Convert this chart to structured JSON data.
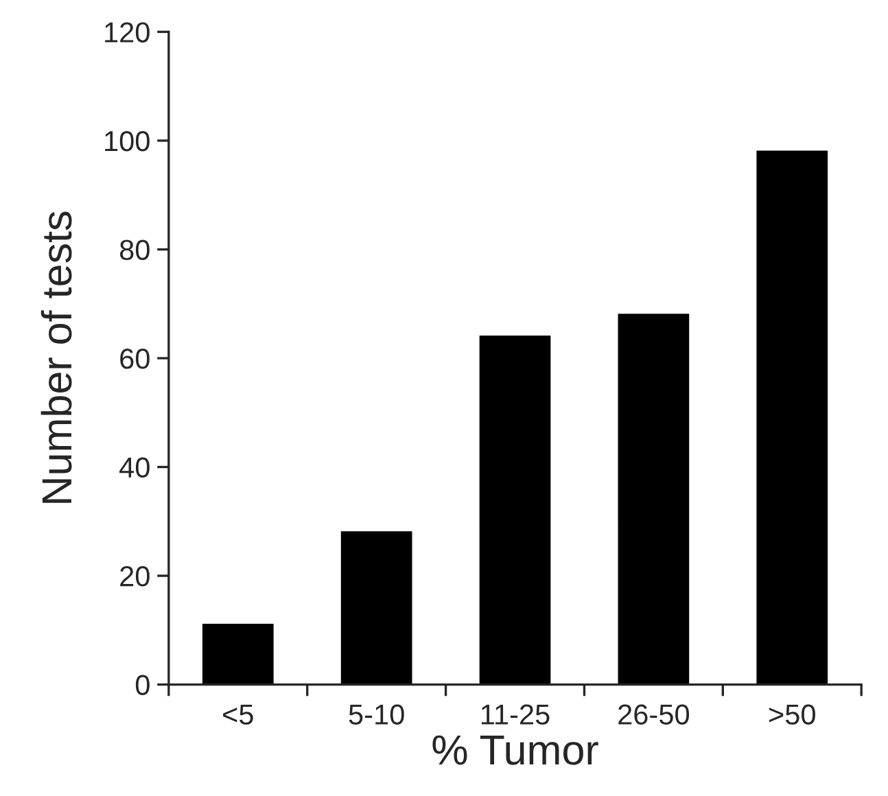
{
  "chart_data": {
    "type": "bar",
    "xlabel": "% Tumor",
    "ylabel": "Number of tests",
    "categories": [
      "<5",
      "5-10",
      "11-25",
      "26-50",
      ">50"
    ],
    "values": [
      11,
      28,
      64,
      68,
      98
    ],
    "color": "#000000",
    "ylim": [
      0,
      120
    ],
    "yticks": [
      0,
      20,
      40,
      60,
      80,
      100,
      120
    ],
    "grid": false
  }
}
